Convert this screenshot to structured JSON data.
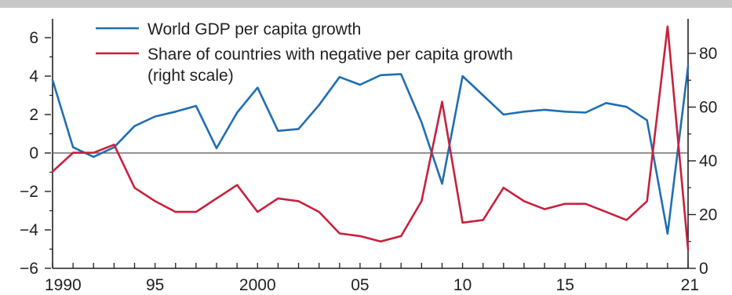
{
  "chart_data": {
    "type": "line",
    "title": "",
    "xlabel": "",
    "ylabel": "",
    "x_tick_labels": [
      "1990",
      "95",
      "2000",
      "05",
      "10",
      "15",
      "21"
    ],
    "x_tick_years": [
      1990,
      1995,
      2000,
      2005,
      2010,
      2015,
      2021
    ],
    "xlim": [
      1990,
      2021
    ],
    "ylim_left": [
      -6,
      6
    ],
    "ylim_right": [
      0,
      80
    ],
    "left_ticks": [
      {
        "value": 6,
        "label": "6"
      },
      {
        "value": 4,
        "label": "4"
      },
      {
        "value": 2,
        "label": "2"
      },
      {
        "value": 0,
        "label": "0"
      },
      {
        "value": -2,
        "label": "−2"
      },
      {
        "value": -4,
        "label": "−4"
      },
      {
        "value": -6,
        "label": "−6"
      }
    ],
    "right_ticks": [
      {
        "value": 80,
        "label": "80"
      },
      {
        "value": 60,
        "label": "60"
      },
      {
        "value": 40,
        "label": "40"
      },
      {
        "value": 20,
        "label": "20"
      },
      {
        "value": 0,
        "label": "0"
      }
    ],
    "zero_line": 0,
    "legend_position": "top-center",
    "series": [
      {
        "name": "World GDP per capita growth",
        "axis": "left",
        "color": "#1f6eb3",
        "x": [
          1990,
          1991,
          1992,
          1993,
          1994,
          1995,
          1996,
          1997,
          1998,
          1999,
          2000,
          2001,
          2002,
          2003,
          2004,
          2005,
          2006,
          2007,
          2008,
          2009,
          2010,
          2011,
          2012,
          2013,
          2014,
          2015,
          2016,
          2017,
          2018,
          2019,
          2020,
          2021
        ],
        "values": [
          3.8,
          0.3,
          -0.2,
          0.3,
          1.4,
          1.9,
          2.15,
          2.45,
          0.25,
          2.1,
          3.4,
          1.15,
          1.25,
          2.5,
          3.95,
          3.55,
          4.05,
          4.1,
          1.6,
          -1.6,
          4.0,
          3.0,
          2.0,
          2.15,
          2.25,
          2.15,
          2.1,
          2.6,
          2.4,
          1.7,
          -4.2,
          4.5
        ]
      },
      {
        "name": "Share of countries with negative per capita growth\n(right scale)",
        "legend_lines": [
          "Share of countries with negative per capita growth",
          "(right scale)"
        ],
        "axis": "right",
        "color": "#c8203c",
        "x": [
          1990,
          1991,
          1992,
          1993,
          1994,
          1995,
          1996,
          1997,
          1998,
          1999,
          2000,
          2001,
          2002,
          2003,
          2004,
          2005,
          2006,
          2007,
          2008,
          2009,
          2010,
          2011,
          2012,
          2013,
          2014,
          2015,
          2016,
          2017,
          2018,
          2019,
          2020,
          2021
        ],
        "values": [
          36,
          43,
          43,
          46,
          30,
          25,
          21,
          21,
          26,
          31,
          21,
          26,
          25,
          21,
          13,
          12,
          10,
          12,
          25,
          62,
          17,
          18,
          30,
          25,
          22,
          24,
          24,
          21,
          18,
          25,
          90,
          7
        ]
      }
    ]
  },
  "colors": {
    "frame": "#231f20",
    "zero_line": "#555555",
    "top_band": "#c8c8c8",
    "minor_tick": "#231f20"
  }
}
